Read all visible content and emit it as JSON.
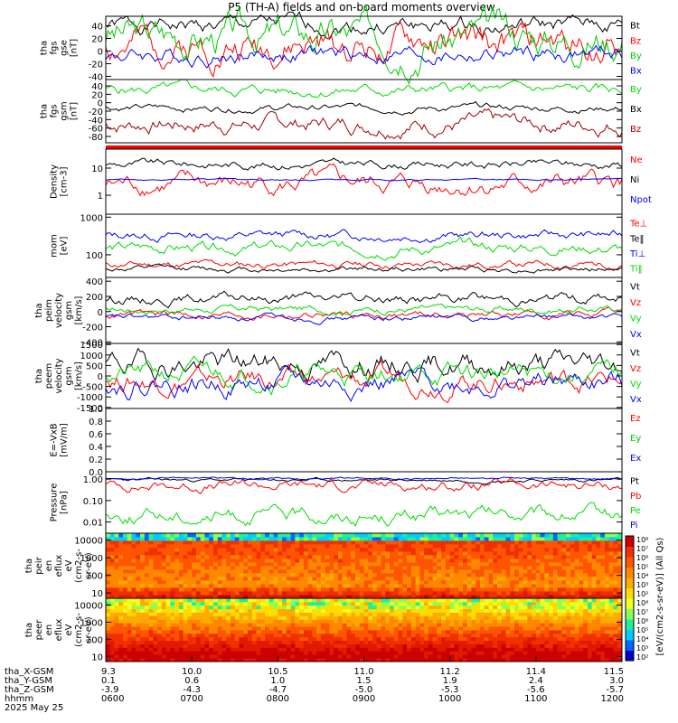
{
  "title": "P5 (TH-A) fields and on-board moments overview",
  "chart_data": [
    {
      "type": "line",
      "ylabel": [
        "tha",
        "fgs",
        "gse",
        "[nT]"
      ],
      "yticks": [
        "40",
        "20",
        "0",
        "-20",
        "-40"
      ],
      "ylim": [
        -45,
        55
      ],
      "tick_values": [
        40,
        20,
        0,
        -20,
        -40
      ],
      "series": [
        {
          "name": "Bt",
          "color": "#000000",
          "base": 40,
          "amp": 8,
          "seed": 1
        },
        {
          "name": "Bz",
          "color": "#ff0000",
          "base": 10,
          "amp": 16,
          "seed": 2
        },
        {
          "name": "By",
          "color": "#00cc00",
          "base": 25,
          "amp": 18,
          "seed": 3
        },
        {
          "name": "Bx",
          "color": "#0000ff",
          "base": -6,
          "amp": 8,
          "seed": 4
        }
      ]
    },
    {
      "type": "line",
      "ylabel": [
        "tha",
        "fgs",
        "gsm",
        "[nT]"
      ],
      "yticks": [
        "40",
        "20",
        "0",
        "-20",
        "-40",
        "-60",
        "-80"
      ],
      "ylim": [
        -95,
        55
      ],
      "tick_values": [
        40,
        20,
        0,
        -20,
        -40,
        -60,
        -80
      ],
      "series": [
        {
          "name": "By",
          "color": "#00dd00",
          "base": 30,
          "amp": 8,
          "seed": 5
        },
        {
          "name": "Bx",
          "color": "#000000",
          "base": -12,
          "amp": 5,
          "seed": 6
        },
        {
          "name": "Bz",
          "color": "#a00000",
          "base": -50,
          "amp": 12,
          "seed": 7
        }
      ]
    },
    {
      "type": "line",
      "ylabel": [
        "Density",
        "[cm-3]"
      ],
      "yticks": [
        "10",
        "1"
      ],
      "log": true,
      "ylim": [
        0.2,
        50
      ],
      "tick_values": [
        10,
        1
      ],
      "series": [
        {
          "name": "Ne",
          "color": "#ff0000",
          "base": 2.5,
          "amp": 0.35,
          "seed": 8
        },
        {
          "name": "Ni",
          "color": "#000000",
          "base": 14,
          "amp": 0.15,
          "seed": 9
        },
        {
          "name": "Npot",
          "color": "#0000ff",
          "base": 3.8,
          "amp": 0.03,
          "seed": 10
        }
      ]
    },
    {
      "type": "line",
      "ylabel": [
        "mom",
        "[eV]"
      ],
      "yticks": [
        "1000",
        "100"
      ],
      "log": true,
      "ylim": [
        25,
        1200
      ],
      "tick_values": [
        1000,
        100
      ],
      "series": [
        {
          "name": "Te⊥",
          "color": "#ff0000",
          "base": 55,
          "amp": 0.1,
          "seed": 11
        },
        {
          "name": "Te‖",
          "color": "#000000",
          "base": 42,
          "amp": 0.08,
          "seed": 12
        },
        {
          "name": "Ti⊥",
          "color": "#0000ff",
          "base": 330,
          "amp": 0.12,
          "seed": 13
        },
        {
          "name": "Ti‖",
          "color": "#00dd00",
          "base": 150,
          "amp": 0.15,
          "seed": 14
        }
      ]
    },
    {
      "type": "line",
      "ylabel": [
        "tha",
        "peim",
        "velocity",
        "gsm",
        "[km/s]"
      ],
      "yticks": [
        "400",
        "200",
        "0",
        "-200",
        "-400"
      ],
      "ylim": [
        -420,
        450
      ],
      "tick_values": [
        400,
        200,
        0,
        -200,
        -400
      ],
      "series": [
        {
          "name": "Vt",
          "color": "#000000",
          "base": 170,
          "amp": 40,
          "seed": 15
        },
        {
          "name": "Vz",
          "color": "#ff0000",
          "base": -40,
          "amp": 30,
          "seed": 16
        },
        {
          "name": "Vy",
          "color": "#00dd00",
          "base": 30,
          "amp": 30,
          "seed": 17
        },
        {
          "name": "Vx",
          "color": "#0000ff",
          "base": -80,
          "amp": 25,
          "seed": 18
        }
      ]
    },
    {
      "type": "line",
      "ylabel": [
        "tha",
        "peem",
        "velocity",
        "gsm",
        "[km/s]"
      ],
      "yticks": [
        "1500",
        "1000",
        "500",
        "0",
        "-500",
        "-1000",
        "-1500"
      ],
      "ylim": [
        -1550,
        1550
      ],
      "tick_values": [
        1500,
        1000,
        500,
        0,
        -500,
        -1000,
        -1500
      ],
      "series": [
        {
          "name": "Vt",
          "color": "#000000",
          "base": 600,
          "amp": 350,
          "seed": 19
        },
        {
          "name": "Vz",
          "color": "#ff0000",
          "base": -200,
          "amp": 300,
          "seed": 20
        },
        {
          "name": "Vy",
          "color": "#00dd00",
          "base": 100,
          "amp": 300,
          "seed": 21
        },
        {
          "name": "Vx",
          "color": "#0000ff",
          "base": -350,
          "amp": 300,
          "seed": 22
        }
      ]
    },
    {
      "type": "line",
      "ylabel": [
        "E=-VxB",
        "[mV/m]"
      ],
      "yticks": [
        "1.0",
        "0.8",
        "0.6",
        "0.4",
        "0.2",
        "0.0"
      ],
      "ylim": [
        0,
        1
      ],
      "tick_values": [
        1.0,
        0.8,
        0.6,
        0.4,
        0.2,
        0.0
      ],
      "series": [
        {
          "name": "Ez",
          "color": "#ff0000"
        },
        {
          "name": "Ey",
          "color": "#00cc00"
        },
        {
          "name": "Ex",
          "color": "#0000ff"
        }
      ]
    },
    {
      "type": "line",
      "ylabel": [
        "Pressure",
        "[nPa]"
      ],
      "yticks": [
        "1.00",
        "0.10",
        "0.01"
      ],
      "log": true,
      "ylim": [
        0.003,
        2.2
      ],
      "tick_values": [
        1.0,
        0.1,
        0.01
      ],
      "series": [
        {
          "name": "Pt",
          "color": "#000000",
          "base": 0.9,
          "amp": 0.08,
          "seed": 23
        },
        {
          "name": "Pb",
          "color": "#ff0000",
          "base": 0.5,
          "amp": 0.25,
          "seed": 24
        },
        {
          "name": "Pe",
          "color": "#00dd00",
          "base": 0.02,
          "amp": 0.35,
          "seed": 25
        },
        {
          "name": "Pi",
          "color": "#0000ff",
          "base": 1.1,
          "amp": 0.05,
          "seed": 26
        }
      ]
    },
    {
      "type": "heatmap",
      "ylabel": [
        "tha",
        "peir",
        "en",
        "eflux",
        "eV",
        "(cm2-s-",
        "sr-eV)"
      ],
      "yticks": [
        "10000",
        "1000",
        "100",
        "10"
      ],
      "log": true,
      "ylim": [
        5,
        25000
      ],
      "tick_values": [
        10000,
        1000,
        100,
        10
      ]
    },
    {
      "type": "heatmap",
      "ylabel": [
        "tha",
        "peer",
        "en",
        "eflux",
        "eV",
        "(cm2-s-",
        "sr-eV)"
      ],
      "yticks": [
        "10000",
        "1000",
        "100",
        "10"
      ],
      "log": true,
      "ylim": [
        5,
        25000
      ],
      "tick_values": [
        10000,
        1000,
        100,
        10
      ]
    }
  ],
  "colorbar": {
    "label": "[eV/(cm2-s-sr-eV)] (All Qs)",
    "ticks": [
      "10⁸",
      "10⁷",
      "10⁶",
      "10⁵",
      "10⁴",
      "10³",
      "10²",
      "10⁸",
      "10⁷",
      "10⁶",
      "10⁵",
      "10⁴",
      "10³",
      "10²"
    ]
  },
  "xaxis": {
    "rows": [
      {
        "label": "tha_X-GSM",
        "values": [
          "9.3",
          "10.0",
          "10.5",
          "11.0",
          "11.2",
          "11.4",
          "11.5"
        ]
      },
      {
        "label": "tha_Y-GSM",
        "values": [
          "0.1",
          "0.6",
          "1.0",
          "1.5",
          "1.9",
          "2.4",
          "3.0"
        ]
      },
      {
        "label": "tha_Z-GSM",
        "values": [
          "-3.9",
          "-4.3",
          "-4.7",
          "-5.0",
          "-5.3",
          "-5.6",
          "-5.7"
        ]
      },
      {
        "label": "hhmm",
        "values": [
          "0600",
          "0700",
          "0800",
          "0900",
          "1000",
          "1100",
          "1200"
        ]
      }
    ],
    "date": "2025 May 25"
  }
}
